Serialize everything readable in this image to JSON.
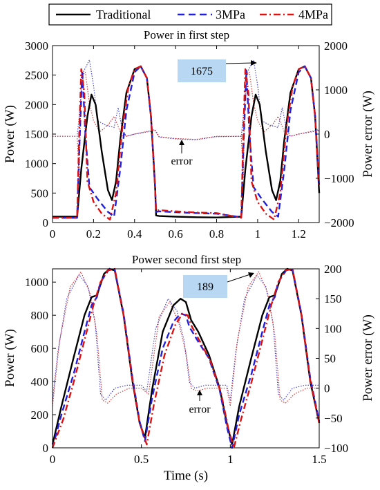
{
  "legend": {
    "items": [
      {
        "label": "Traditional",
        "color": "#000000",
        "dash": "solid"
      },
      {
        "label": "3MPa",
        "color": "#1f1fdd",
        "dash": "dashed"
      },
      {
        "label": "4MPa",
        "color": "#dd1111",
        "dash": "dashdot"
      }
    ]
  },
  "chart_data": [
    {
      "type": "line",
      "title": "Power in first step",
      "xlabel": "",
      "ylabel": "Power (W)",
      "y2label": "Power error (W)",
      "xlim": [
        0,
        1.3
      ],
      "ylim": [
        0,
        3000
      ],
      "y2lim": [
        -2000,
        2000
      ],
      "xticks": [
        "0",
        "0.2",
        "0.4",
        "0.6",
        "0.8",
        "1",
        "1.2"
      ],
      "xtick_values": [
        0,
        0.2,
        0.4,
        0.6,
        0.8,
        1.0,
        1.2
      ],
      "yticks": [
        "0",
        "500",
        "1000",
        "1500",
        "2000",
        "2500",
        "3000"
      ],
      "ytick_values": [
        0,
        500,
        1000,
        1500,
        2000,
        2500,
        3000
      ],
      "y2ticks": [
        "−2000",
        "−1000",
        "0",
        "1000",
        "2000"
      ],
      "y2tick_values": [
        -2000,
        -1000,
        0,
        1000,
        2000
      ],
      "annotations": [
        {
          "text": "1675",
          "x": 1.0,
          "y2": 1675,
          "style": "callout-box"
        },
        {
          "text": "error",
          "x": 0.65,
          "y2": 0,
          "style": "arrow-up"
        }
      ],
      "series": [
        {
          "name": "Traditional",
          "axis": "left",
          "color": "#000000",
          "dash": "solid",
          "x": [
            0,
            0.12,
            0.14,
            0.17,
            0.19,
            0.21,
            0.24,
            0.27,
            0.29,
            0.31,
            0.33,
            0.36,
            0.4,
            0.43,
            0.46,
            0.48,
            0.5,
            0.505,
            0.52,
            0.6,
            0.7,
            0.8,
            0.92,
            0.94,
            0.97,
            0.99,
            1.01,
            1.04,
            1.07,
            1.09,
            1.11,
            1.13,
            1.16,
            1.2,
            1.23,
            1.26,
            1.28,
            1.3
          ],
          "y": [
            100,
            100,
            900,
            1800,
            2170,
            2000,
            1200,
            550,
            380,
            700,
            1400,
            2200,
            2600,
            2650,
            2450,
            1800,
            600,
            120,
            110,
            100,
            90,
            85,
            100,
            900,
            1800,
            2170,
            2000,
            1200,
            550,
            380,
            700,
            1400,
            2200,
            2600,
            2650,
            2450,
            1800,
            500
          ]
        },
        {
          "name": "3MPa",
          "axis": "left",
          "color": "#1f1fdd",
          "dash": "dashed",
          "x": [
            0,
            0.12,
            0.13,
            0.145,
            0.16,
            0.18,
            0.22,
            0.27,
            0.3,
            0.33,
            0.36,
            0.4,
            0.43,
            0.46,
            0.48,
            0.5,
            0.505,
            0.52,
            0.6,
            0.7,
            0.8,
            0.92,
            0.93,
            0.945,
            0.96,
            0.98,
            1.02,
            1.07,
            1.1,
            1.13,
            1.16,
            1.2,
            1.23,
            1.26,
            1.28,
            1.3
          ],
          "y": [
            80,
            80,
            1200,
            2580,
            1500,
            600,
            400,
            180,
            100,
            900,
            1900,
            2550,
            2650,
            2450,
            1800,
            600,
            180,
            190,
            175,
            160,
            150,
            90,
            1200,
            2580,
            1500,
            600,
            400,
            180,
            100,
            900,
            1900,
            2550,
            2650,
            2450,
            1800,
            600
          ]
        },
        {
          "name": "4MPa",
          "axis": "left",
          "color": "#dd1111",
          "dash": "dashdot",
          "x": [
            0,
            0.12,
            0.13,
            0.14,
            0.155,
            0.17,
            0.2,
            0.24,
            0.28,
            0.31,
            0.34,
            0.37,
            0.4,
            0.43,
            0.46,
            0.48,
            0.5,
            0.505,
            0.52,
            0.6,
            0.7,
            0.8,
            0.92,
            0.93,
            0.94,
            0.955,
            0.97,
            1.0,
            1.04,
            1.08,
            1.11,
            1.14,
            1.17,
            1.2,
            1.23,
            1.26,
            1.28,
            1.3
          ],
          "y": [
            80,
            80,
            1500,
            2600,
            2200,
            700,
            350,
            150,
            50,
            500,
            1600,
            2300,
            2600,
            2650,
            2450,
            1800,
            600,
            200,
            210,
            190,
            170,
            160,
            80,
            1500,
            2600,
            2200,
            700,
            350,
            150,
            50,
            500,
            1600,
            2300,
            2600,
            2650,
            2450,
            1800,
            600
          ]
        },
        {
          "name": "3MPa error",
          "axis": "right",
          "color": "#4444dd",
          "dash": "dotted",
          "x": [
            0,
            0.12,
            0.13,
            0.15,
            0.18,
            0.2,
            0.22,
            0.26,
            0.3,
            0.32,
            0.34,
            0.36,
            0.4,
            0.5,
            0.52,
            0.6,
            0.7,
            0.8,
            0.92,
            0.93,
            0.95,
            0.98,
            1.0,
            1.02,
            1.06,
            1.1,
            1.12,
            1.14,
            1.16,
            1.2,
            1.3
          ],
          "x_note": "",
          "y": [
            -50,
            -50,
            400,
            1400,
            1675,
            1100,
            300,
            200,
            150,
            600,
            100,
            -50,
            0,
            80,
            -70,
            -110,
            -130,
            -60,
            -50,
            400,
            1400,
            1675,
            1100,
            300,
            200,
            150,
            600,
            100,
            -50,
            0,
            80
          ]
        },
        {
          "name": "4MPa error",
          "axis": "right",
          "color": "#dd3333",
          "dash": "dotted",
          "x": [
            0,
            0.12,
            0.13,
            0.14,
            0.16,
            0.18,
            0.2,
            0.23,
            0.27,
            0.3,
            0.33,
            0.36,
            0.4,
            0.5,
            0.52,
            0.6,
            0.7,
            0.8,
            0.92,
            0.93,
            0.94,
            0.96,
            0.98,
            1.0,
            1.03,
            1.07,
            1.1,
            1.13,
            1.16,
            1.2,
            1.3
          ],
          "y": [
            -50,
            -50,
            -1000,
            1300,
            1400,
            700,
            300,
            50,
            200,
            400,
            50,
            -50,
            0,
            100,
            -60,
            -100,
            -120,
            -50,
            -50,
            -1000,
            1300,
            1400,
            700,
            300,
            50,
            200,
            400,
            50,
            -50,
            0,
            100
          ]
        }
      ]
    },
    {
      "type": "line",
      "title": "Power second first step",
      "xlabel": "Time (s)",
      "ylabel": "Power (W)",
      "y2label": "Power error (W)",
      "xlim": [
        0,
        1.5
      ],
      "ylim": [
        0,
        1080
      ],
      "y2lim": [
        -100,
        200
      ],
      "xticks": [
        "0",
        "0.5",
        "1",
        "1.5"
      ],
      "xtick_values": [
        0,
        0.5,
        1.0,
        1.5
      ],
      "yticks": [
        "0",
        "200",
        "400",
        "600",
        "800",
        "1000"
      ],
      "ytick_values": [
        0,
        200,
        400,
        600,
        800,
        1000
      ],
      "y2ticks": [
        "−100",
        "−50",
        "0",
        "50",
        "100",
        "150",
        "200"
      ],
      "y2tick_values": [
        -100,
        -50,
        0,
        50,
        100,
        150,
        200
      ],
      "annotations": [
        {
          "text": "189",
          "x": 1.12,
          "y2": 189,
          "style": "callout-box"
        },
        {
          "text": "error",
          "x": 0.8,
          "y2": 0,
          "style": "arrow-up"
        }
      ],
      "series": [
        {
          "name": "Traditional",
          "axis": "left",
          "color": "#000000",
          "dash": "solid",
          "x": [
            0,
            0.05,
            0.12,
            0.18,
            0.22,
            0.25,
            0.29,
            0.32,
            0.35,
            0.4,
            0.45,
            0.49,
            0.52,
            0.56,
            0.62,
            0.68,
            0.72,
            0.75,
            0.78,
            0.82,
            0.88,
            0.94,
            0.98,
            1.01,
            1.05,
            1.12,
            1.18,
            1.22,
            1.25,
            1.29,
            1.32,
            1.35,
            1.4,
            1.45,
            1.5
          ],
          "y": [
            20,
            250,
            550,
            800,
            910,
            920,
            1050,
            1080,
            1070,
            800,
            400,
            150,
            60,
            350,
            700,
            860,
            900,
            880,
            770,
            700,
            560,
            360,
            150,
            20,
            250,
            550,
            800,
            910,
            920,
            1050,
            1080,
            1070,
            800,
            400,
            150
          ]
        },
        {
          "name": "3MPa",
          "axis": "left",
          "color": "#1f1fdd",
          "dash": "dashed",
          "x": [
            0,
            0.05,
            0.12,
            0.18,
            0.22,
            0.25,
            0.27,
            0.32,
            0.35,
            0.4,
            0.45,
            0.49,
            0.52,
            0.56,
            0.62,
            0.68,
            0.72,
            0.75,
            0.77,
            0.82,
            0.88,
            0.94,
            0.98,
            1.01,
            1.05,
            1.12,
            1.18,
            1.22,
            1.25,
            1.27,
            1.32,
            1.35,
            1.4,
            1.45,
            1.5
          ],
          "y": [
            0,
            200,
            450,
            700,
            860,
            910,
            1000,
            1080,
            1075,
            810,
            420,
            160,
            40,
            300,
            600,
            760,
            810,
            800,
            730,
            640,
            540,
            350,
            130,
            0,
            200,
            450,
            700,
            860,
            910,
            1000,
            1080,
            1075,
            810,
            420,
            160
          ]
        },
        {
          "name": "4MPa",
          "axis": "left",
          "color": "#dd1111",
          "dash": "dashdot",
          "x": [
            0,
            0.06,
            0.12,
            0.18,
            0.23,
            0.27,
            0.31,
            0.35,
            0.4,
            0.45,
            0.49,
            0.53,
            0.57,
            0.63,
            0.69,
            0.73,
            0.76,
            0.78,
            0.83,
            0.89,
            0.95,
            0.99,
            1.02,
            1.06,
            1.12,
            1.18,
            1.23,
            1.27,
            1.31,
            1.35,
            1.4,
            1.45,
            1.5
          ],
          "y": [
            -30,
            170,
            400,
            650,
            860,
            1000,
            1070,
            1080,
            800,
            410,
            150,
            20,
            260,
            560,
            740,
            810,
            800,
            740,
            640,
            520,
            320,
            110,
            -30,
            170,
            400,
            650,
            860,
            1000,
            1070,
            1080,
            800,
            410,
            150
          ]
        },
        {
          "name": "3MPa error",
          "axis": "right",
          "color": "#4444dd",
          "dash": "dotted",
          "x": [
            0,
            0.03,
            0.08,
            0.15,
            0.2,
            0.24,
            0.27,
            0.3,
            0.35,
            0.42,
            0.5,
            0.53,
            0.58,
            0.65,
            0.7,
            0.74,
            0.77,
            0.8,
            0.86,
            0.92,
            0.98,
            1.0,
            1.03,
            1.08,
            1.15,
            1.2,
            1.24,
            1.27,
            1.3,
            1.35,
            1.42,
            1.5
          ],
          "y": [
            -20,
            60,
            150,
            190,
            170,
            110,
            -10,
            -20,
            0,
            5,
            5,
            -5,
            100,
            150,
            130,
            80,
            10,
            0,
            5,
            5,
            5,
            -20,
            60,
            150,
            189,
            170,
            110,
            -10,
            -20,
            0,
            5,
            5
          ]
        },
        {
          "name": "4MPa error",
          "axis": "right",
          "color": "#dd3333",
          "dash": "dotted",
          "x": [
            0,
            0.04,
            0.1,
            0.16,
            0.21,
            0.25,
            0.28,
            0.31,
            0.36,
            0.43,
            0.5,
            0.54,
            0.6,
            0.66,
            0.71,
            0.75,
            0.78,
            0.81,
            0.87,
            0.93,
            0.98,
            1.0,
            1.04,
            1.1,
            1.16,
            1.21,
            1.25,
            1.28,
            1.31,
            1.36,
            1.43,
            1.5
          ],
          "y": [
            -30,
            80,
            170,
            195,
            160,
            90,
            -20,
            -25,
            -10,
            0,
            0,
            -10,
            120,
            145,
            110,
            60,
            0,
            -5,
            0,
            0,
            0,
            -30,
            80,
            170,
            195,
            160,
            90,
            -20,
            -25,
            -10,
            0,
            0
          ]
        }
      ]
    }
  ]
}
